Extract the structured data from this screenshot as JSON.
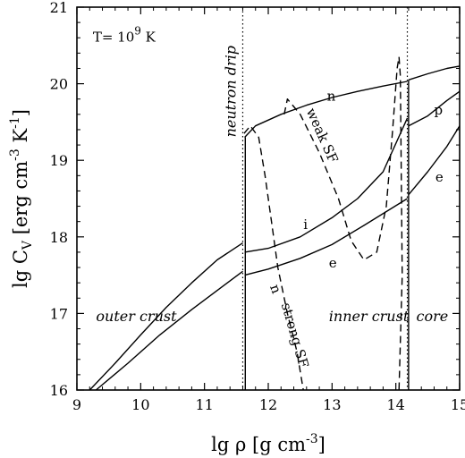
{
  "chart_data": {
    "type": "line",
    "annotation_T": "T= 10",
    "annotation_T_exp": "9",
    "annotation_T_unit": " K",
    "xlabel": "lg ρ  [g cm",
    "xlabel_exp": "-3",
    "xlabel_end": "]",
    "ylabel": "lg C",
    "ylabel_sub": "V",
    "ylabel_mid": " [erg cm",
    "ylabel_exp": "-3",
    "ylabel_mid2": " K",
    "ylabel_exp2": "-1",
    "ylabel_end": "]",
    "xlim": [
      9,
      15
    ],
    "ylim": [
      16,
      21
    ],
    "xticks": [
      "9",
      "10",
      "11",
      "12",
      "13",
      "14",
      "15"
    ],
    "yticks": [
      "16",
      "17",
      "18",
      "19",
      "20",
      "21"
    ],
    "vlines": [
      11.6,
      14.18
    ],
    "regions": [
      "outer crust",
      "inner crust",
      "core"
    ],
    "drip_label": "neutron drip",
    "series": [
      {
        "name": "n",
        "style": "solid",
        "x": [
          11.63,
          11.8,
          12.2,
          12.6,
          13.0,
          13.4,
          13.8,
          14.18
        ],
        "y": [
          19.3,
          19.45,
          19.6,
          19.72,
          19.82,
          19.9,
          19.97,
          20.03
        ]
      },
      {
        "name": "",
        "style": "solid",
        "x": [
          14.2,
          14.5,
          14.8,
          15.0
        ],
        "y": [
          20.05,
          20.13,
          20.2,
          20.23
        ]
      },
      {
        "name": "i",
        "style": "solid",
        "x": [
          9.2,
          9.6,
          10.0,
          10.4,
          10.8,
          11.2,
          11.6
        ],
        "y": [
          16.0,
          16.35,
          16.72,
          17.08,
          17.4,
          17.7,
          17.92
        ]
      },
      {
        "name": "",
        "style": "solid",
        "x": [
          11.63,
          12.0,
          12.5,
          13.0,
          13.4,
          13.8,
          14.18
        ],
        "y": [
          17.8,
          17.85,
          18.0,
          18.25,
          18.5,
          18.85,
          19.55
        ]
      },
      {
        "name": "p",
        "style": "solid",
        "x": [
          14.2,
          14.5,
          14.8,
          15.0
        ],
        "y": [
          19.45,
          19.58,
          19.78,
          19.9
        ]
      },
      {
        "name": "e",
        "style": "solid",
        "x": [
          9.3,
          9.8,
          10.3,
          10.8,
          11.2,
          11.6
        ],
        "y": [
          16.0,
          16.35,
          16.72,
          17.05,
          17.3,
          17.55
        ]
      },
      {
        "name": "",
        "style": "solid",
        "x": [
          11.63,
          12.0,
          12.5,
          13.0,
          13.5,
          14.18
        ],
        "y": [
          17.5,
          17.58,
          17.72,
          17.9,
          18.15,
          18.5
        ]
      },
      {
        "name": "",
        "style": "solid",
        "x": [
          14.2,
          14.5,
          14.8,
          15.0
        ],
        "y": [
          18.55,
          18.85,
          19.18,
          19.45
        ]
      },
      {
        "name": "n",
        "style": "dashed",
        "x": [
          11.62,
          11.72,
          11.85,
          11.95,
          12.05,
          12.15,
          12.3,
          12.45,
          12.55
        ],
        "y": [
          19.35,
          19.45,
          19.3,
          18.8,
          18.2,
          17.6,
          17.0,
          16.5,
          16.0
        ]
      },
      {
        "name": "",
        "style": "dashed",
        "x": [
          12.25,
          12.3,
          12.5,
          12.8,
          13.1,
          13.3,
          13.5,
          13.7,
          13.85,
          13.95,
          14.02,
          14.05,
          14.07,
          14.1,
          14.05
        ],
        "y": [
          19.6,
          19.8,
          19.6,
          19.1,
          18.5,
          17.95,
          17.7,
          17.8,
          18.4,
          19.4,
          20.2,
          20.35,
          20.1,
          17.5,
          16.0
        ]
      },
      {
        "name": "",
        "style": "solid",
        "x": [
          11.64,
          11.64
        ],
        "y": [
          16.0,
          19.3
        ]
      },
      {
        "name": "",
        "style": "solid",
        "x": [
          14.2,
          14.2
        ],
        "y": [
          16.0,
          20.05
        ]
      }
    ],
    "labels": {
      "n_upper": "n",
      "i": "i",
      "e_lower": "e",
      "p": "p",
      "e_core": "e",
      "n_dashed": "n",
      "weak_sf": "weak SF",
      "strong_sf": "strong SF"
    }
  }
}
